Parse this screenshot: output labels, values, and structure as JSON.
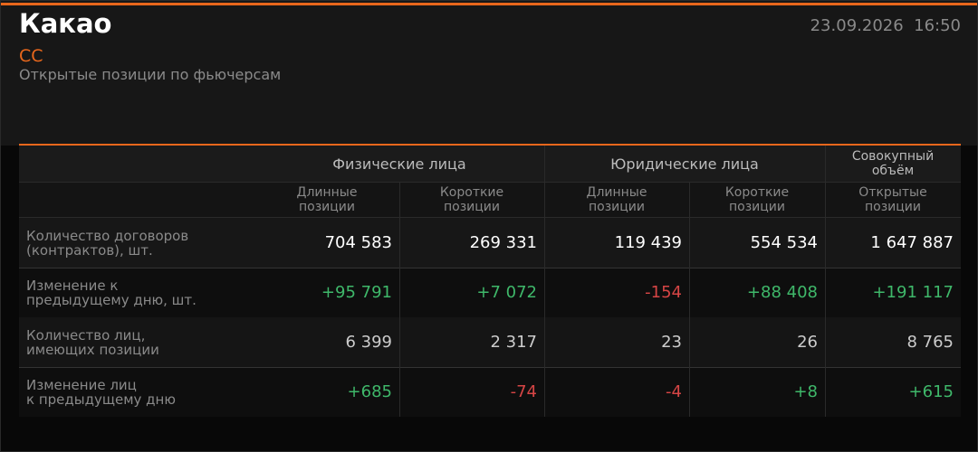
{
  "header": {
    "title": "Какао",
    "ticker": "CC",
    "subtitle": "Открытые позиции по фьючерсам",
    "timestamp": "23.09.2026  16:50"
  },
  "table": {
    "groups": [
      "Физические лица",
      "Юридические лица",
      [
        "Совокупный",
        "объём"
      ]
    ],
    "columns": [
      [
        "Длинные",
        "позиции"
      ],
      [
        "Короткие",
        "позиции"
      ],
      [
        "Длинные",
        "позиции"
      ],
      [
        "Короткие",
        "позиции"
      ],
      [
        "Открытые",
        "позиции"
      ]
    ],
    "rows": [
      {
        "label": [
          "Количество договоров",
          "(контрактов), шт."
        ],
        "cells": [
          "704 583",
          "269 331",
          "119 439",
          "554 534",
          "1 647 887"
        ]
      },
      {
        "label": [
          "Изменение к",
          "предыдущему дню, шт."
        ],
        "cells": [
          "+95 791",
          "+7 072",
          "-154",
          "+88 408",
          "+191 117"
        ]
      },
      {
        "label": [
          "Количество лиц,",
          "имеющих позиции"
        ],
        "cells": [
          "6 399",
          "2 317",
          "23",
          "26",
          "8 765"
        ]
      },
      {
        "label": [
          "Изменение лиц",
          "к предыдущему дню"
        ],
        "cells": [
          "+685",
          "-74",
          "-4",
          "+8",
          "+615"
        ]
      }
    ]
  }
}
